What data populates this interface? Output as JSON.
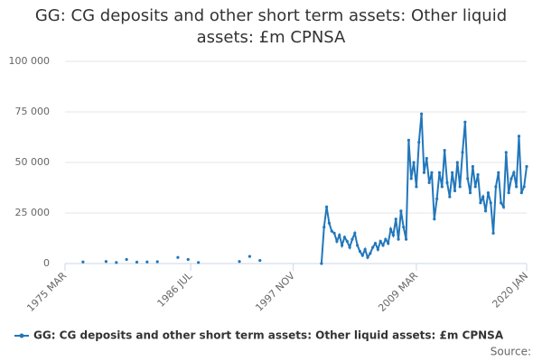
{
  "chart_data": {
    "type": "line",
    "title": "GG: CG deposits and other short term assets: Other liquid assets: £m CPNSA",
    "source": "Source:",
    "categories": [
      "1975 MAR",
      null,
      null,
      null,
      null,
      null,
      null,
      null,
      null,
      null,
      null,
      null,
      null,
      null,
      null,
      null,
      null,
      null,
      null,
      null,
      null,
      null,
      null,
      null,
      null,
      null,
      null,
      null,
      null,
      null,
      null,
      null,
      null,
      null,
      null,
      null,
      null,
      null,
      null,
      null,
      null,
      null,
      null,
      null,
      null,
      null,
      null,
      null,
      null,
      "1986 JUL",
      null,
      null,
      null,
      null,
      null,
      null,
      null,
      null,
      null,
      null,
      null,
      null,
      null,
      null,
      null,
      null,
      null,
      null,
      null,
      null,
      null,
      null,
      null,
      null,
      null,
      null,
      null,
      null,
      null,
      null,
      null,
      null,
      null,
      null,
      null,
      null,
      null,
      null,
      null,
      "1997 NOV",
      null,
      null,
      null,
      null,
      null,
      null,
      null,
      null,
      null,
      null,
      null,
      null,
      null,
      null,
      null,
      null,
      null,
      null,
      null,
      null,
      null,
      null,
      null,
      null,
      null,
      null,
      null,
      null,
      null,
      null,
      null,
      null,
      null,
      null,
      null,
      null,
      null,
      null,
      null,
      null,
      null,
      null,
      null,
      null,
      null,
      null,
      null,
      "2009 MAR",
      null,
      null,
      null,
      null,
      null,
      null,
      null,
      null,
      null,
      null,
      null,
      null,
      null,
      null,
      null,
      null,
      null,
      null,
      null,
      null,
      null,
      null,
      null,
      null,
      null,
      null,
      null,
      null,
      null,
      null,
      null,
      null,
      null,
      null,
      null,
      null,
      null,
      null,
      null,
      null,
      null,
      null,
      "2020 JAN"
    ],
    "series": [
      {
        "name": "GG: CG deposits and other short term assets: Other liquid assets: £m CPNSA",
        "color": "#2277bb",
        "values": [
          null,
          null,
          null,
          null,
          null,
          null,
          null,
          800,
          null,
          null,
          null,
          null,
          null,
          null,
          null,
          null,
          1000,
          null,
          null,
          null,
          500,
          null,
          null,
          null,
          2000,
          null,
          null,
          null,
          700,
          null,
          null,
          null,
          800,
          null,
          null,
          null,
          900,
          null,
          null,
          null,
          null,
          null,
          null,
          null,
          3000,
          null,
          null,
          null,
          2000,
          null,
          null,
          null,
          500,
          null,
          null,
          null,
          null,
          null,
          null,
          null,
          null,
          null,
          null,
          null,
          null,
          null,
          null,
          null,
          1000,
          null,
          null,
          null,
          3500,
          null,
          null,
          null,
          1500,
          null,
          null,
          null,
          null,
          null,
          null,
          null,
          null,
          null,
          null,
          null,
          null,
          null,
          null,
          null,
          null,
          null,
          null,
          null,
          null,
          null,
          null,
          null,
          0,
          18000,
          28000,
          20000,
          16000,
          15000,
          11000,
          14000,
          9000,
          13000,
          11000,
          8000,
          12000,
          15000,
          9000,
          6000,
          4000,
          7000,
          3000,
          5000,
          8000,
          10000,
          7000,
          11000,
          9000,
          12000,
          10000,
          17000,
          14000,
          22000,
          12000,
          26000,
          18000,
          12000,
          61000,
          42000,
          50000,
          38000,
          60000,
          74000,
          45000,
          52000,
          40000,
          45000,
          22000,
          32000,
          45000,
          38000,
          56000,
          40000,
          33000,
          45000,
          36000,
          50000,
          38000,
          55000,
          70000,
          42000,
          35000,
          48000,
          38000,
          44000,
          30000,
          33000,
          26000,
          35000,
          30000,
          15000,
          38000,
          45000,
          30000,
          28000,
          55000,
          35000,
          42000,
          45000,
          38000,
          63000,
          35000,
          38000,
          48000
        ]
      }
    ],
    "ylim": [
      0,
      100000
    ],
    "yticks": [
      0,
      {
        "value": 25000,
        "label": "25 000"
      },
      {
        "value": 50000,
        "label": "50 000"
      },
      {
        "value": 75000,
        "label": "75 000"
      },
      {
        "value": 100000,
        "label": "100 000"
      }
    ],
    "grid": true
  }
}
